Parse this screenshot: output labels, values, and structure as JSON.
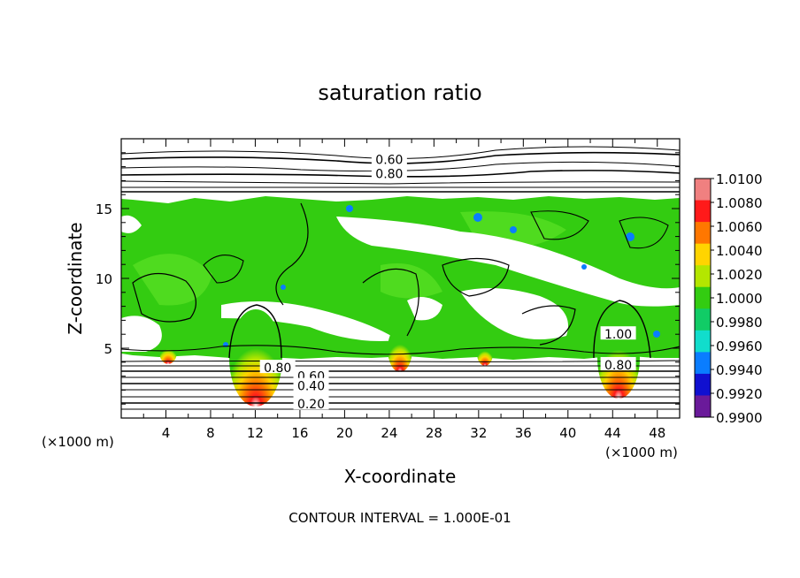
{
  "chart_data": {
    "type": "heatmap",
    "title": "saturation ratio",
    "xlabel": "X-coordinate",
    "ylabel": "Z-coordinate",
    "x_unit_left": "(×1000 m)",
    "x_unit_right": "(×1000 m)",
    "xlim": [
      0,
      50
    ],
    "ylim": [
      0,
      20
    ],
    "x_ticks": [
      "4",
      "8",
      "12",
      "16",
      "20",
      "24",
      "28",
      "32",
      "36",
      "40",
      "44",
      "48"
    ],
    "y_ticks": [
      "5",
      "10",
      "15"
    ],
    "footer": "CONTOUR INTERVAL = 1.000E-01",
    "colorbar": {
      "labels": [
        "1.0100",
        "1.0080",
        "1.0060",
        "1.0040",
        "1.0020",
        "1.0000",
        "0.9980",
        "0.9960",
        "0.9940",
        "0.9920",
        "0.9900"
      ],
      "colors": [
        "#f08080",
        "#ff1a1a",
        "#ff7700",
        "#ffd400",
        "#b4e600",
        "#33cc11",
        "#11cc66",
        "#11ddcc",
        "#0a7dff",
        "#1010d0",
        "#6a1a9a"
      ]
    },
    "contour_labels": [
      {
        "text": "0.60",
        "x": 24,
        "y": 18.5
      },
      {
        "text": "0.80",
        "x": 24,
        "y": 17.5
      },
      {
        "text": "0.80",
        "x": 14,
        "y": 3.6
      },
      {
        "text": "0.60",
        "x": 17,
        "y": 3.0
      },
      {
        "text": "0.40",
        "x": 17,
        "y": 2.3
      },
      {
        "text": "0.20",
        "x": 17,
        "y": 1.0
      },
      {
        "text": "0.80",
        "x": 44.5,
        "y": 3.8
      },
      {
        "text": "1.00",
        "x": 44.5,
        "y": 6.0
      }
    ],
    "contour_levels": [
      0.2,
      0.4,
      0.6,
      0.8,
      1.0
    ],
    "grid": false
  }
}
